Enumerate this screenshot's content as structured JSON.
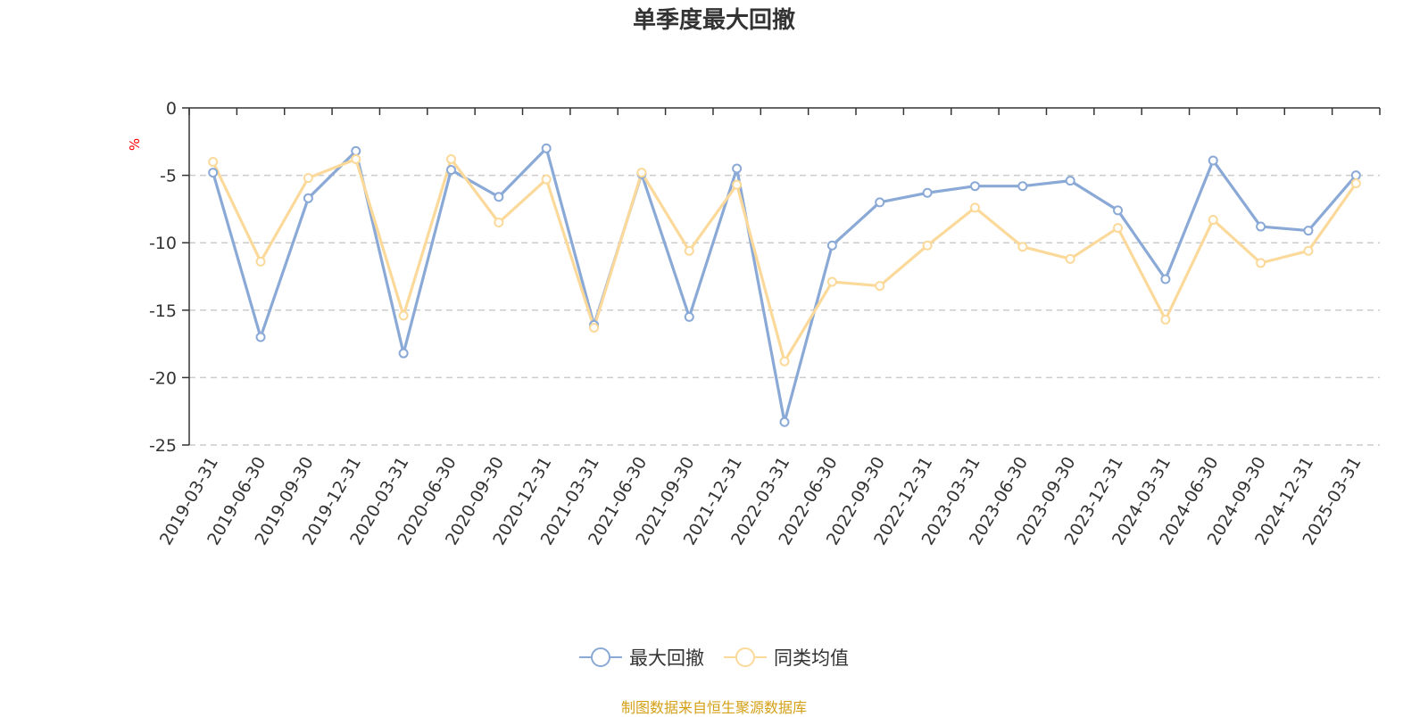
{
  "chart_data": {
    "type": "line",
    "title": "单季度最大回撤",
    "ylabel": "%",
    "ylim": [
      -25,
      0
    ],
    "yticks": [
      0,
      -5,
      -10,
      -15,
      -20,
      -25
    ],
    "grid": true,
    "legend_position": "bottom-center",
    "categories": [
      "2019-03-31",
      "2019-06-30",
      "2019-09-30",
      "2019-12-31",
      "2020-03-31",
      "2020-06-30",
      "2020-09-30",
      "2020-12-31",
      "2021-03-31",
      "2021-06-30",
      "2021-09-30",
      "2021-12-31",
      "2022-03-31",
      "2022-06-30",
      "2022-09-30",
      "2022-12-31",
      "2023-03-31",
      "2023-06-30",
      "2023-09-30",
      "2023-12-31",
      "2024-03-31",
      "2024-06-30",
      "2024-09-30",
      "2024-12-31",
      "2025-03-31"
    ],
    "series": [
      {
        "name": "最大回撤",
        "color": "#8aa9d6",
        "values": [
          -4.8,
          -17.0,
          -6.7,
          -3.2,
          -18.2,
          -4.6,
          -6.6,
          -3.0,
          -16.1,
          -4.9,
          -15.5,
          -4.5,
          -23.3,
          -10.2,
          -7.0,
          -6.3,
          -5.8,
          -5.8,
          -5.4,
          -7.6,
          -12.7,
          -3.9,
          -8.8,
          -9.1,
          -5.0
        ]
      },
      {
        "name": "同类均值",
        "color": "#fbd99a",
        "values": [
          -4.0,
          -11.4,
          -5.2,
          -3.8,
          -15.4,
          -3.8,
          -8.5,
          -5.3,
          -16.3,
          -4.8,
          -10.6,
          -5.7,
          -18.8,
          -12.9,
          -13.2,
          -10.2,
          -7.4,
          -10.3,
          -11.2,
          -8.9,
          -15.7,
          -8.3,
          -11.5,
          -10.6,
          -5.6
        ]
      }
    ]
  },
  "footer": {
    "source": "制图数据来自恒生聚源数据库"
  }
}
